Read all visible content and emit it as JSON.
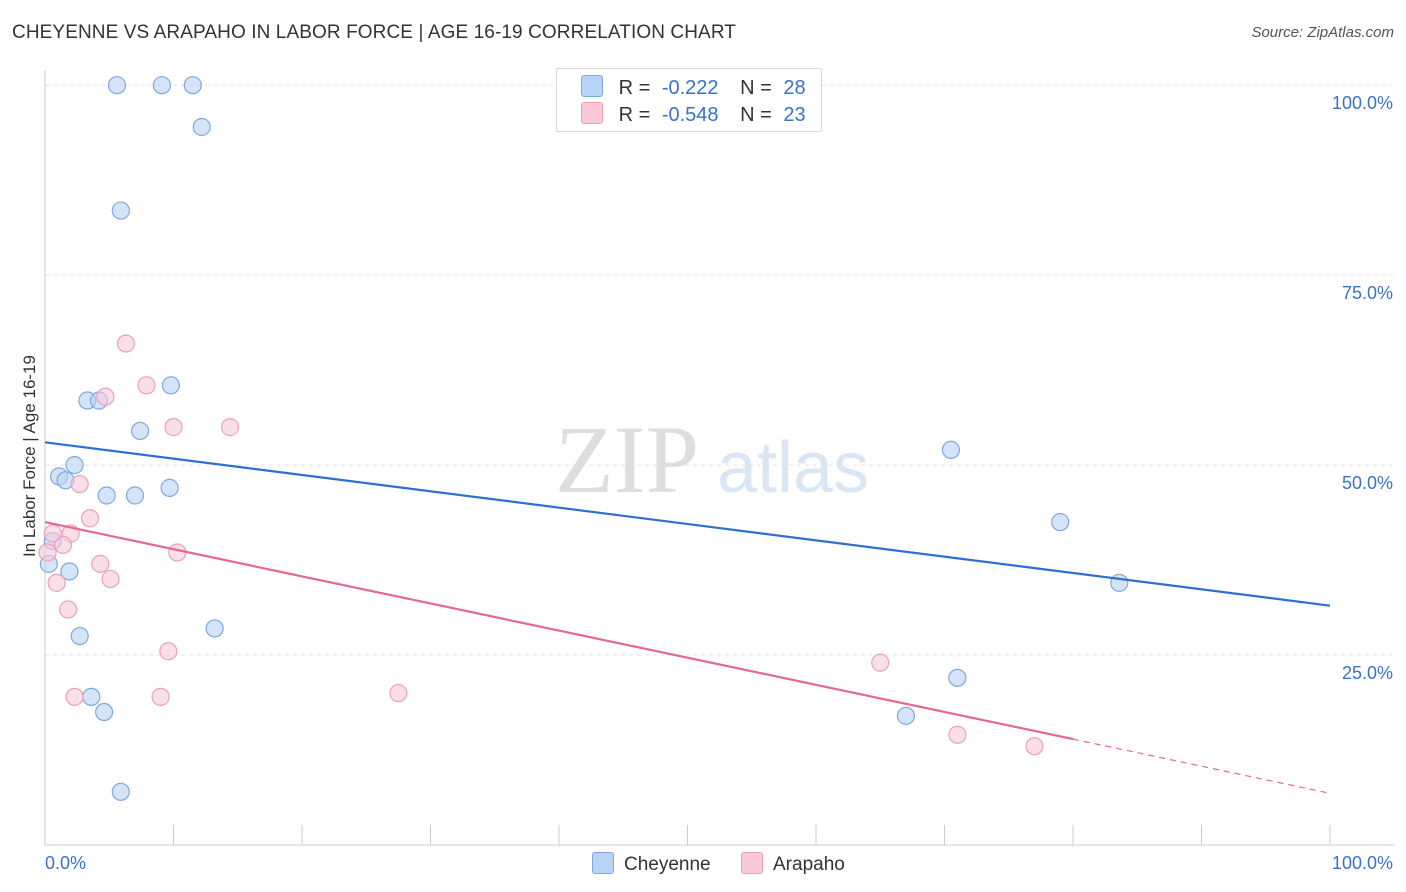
{
  "title": "CHEYENNE VS ARAPAHO IN LABOR FORCE | AGE 16-19 CORRELATION CHART",
  "source": "Source: ZipAtlas.com",
  "watermark": {
    "part1": "ZIP",
    "part2": "atlas"
  },
  "legend": {
    "rows": [
      {
        "r_label": "R =",
        "r_value": "-0.222",
        "n_label": "N =",
        "n_value": "28"
      },
      {
        "r_label": "R =",
        "r_value": "-0.548",
        "n_label": "N =",
        "n_value": "23"
      }
    ]
  },
  "bottom_legend": [
    "Cheyenne",
    "Arapaho"
  ],
  "colors": {
    "cheyenne_fill": "#b8d3f5",
    "cheyenne_stroke": "#7fa8e0",
    "cheyenne_line": "#2f6fd0",
    "arapaho_fill": "#f9c9d8",
    "arapaho_stroke": "#eda0b8",
    "arapaho_line": "#e36896",
    "axis_text": "#3a72c8",
    "grid": "#e3e3e3"
  },
  "chart_data": {
    "type": "scatter",
    "title": "CHEYENNE VS ARAPAHO IN LABOR FORCE | AGE 16-19 CORRELATION CHART",
    "xlabel": "",
    "ylabel": "In Labor Force | Age 16-19",
    "xlim": [
      0,
      100
    ],
    "ylim": [
      0,
      102
    ],
    "x_tick_labels": [
      "0.0%",
      "100.0%"
    ],
    "y_ticks": [
      25,
      50,
      75,
      100
    ],
    "y_tick_labels": [
      "25.0%",
      "50.0%",
      "75.0%",
      "100.0%"
    ],
    "series": [
      {
        "name": "Cheyenne",
        "points": [
          [
            5.6,
            100
          ],
          [
            9.1,
            100
          ],
          [
            11.5,
            100
          ],
          [
            12.2,
            94.5
          ],
          [
            5.9,
            83.5
          ],
          [
            9.8,
            60.5
          ],
          [
            3.3,
            58.5
          ],
          [
            4.2,
            58.5
          ],
          [
            7.4,
            54.5
          ],
          [
            2.3,
            50
          ],
          [
            1.1,
            48.5
          ],
          [
            1.6,
            48
          ],
          [
            4.8,
            46
          ],
          [
            7.0,
            46
          ],
          [
            9.7,
            47
          ],
          [
            0.6,
            40
          ],
          [
            1.9,
            36
          ],
          [
            2.7,
            27.5
          ],
          [
            13.2,
            28.5
          ],
          [
            3.6,
            19.5
          ],
          [
            4.6,
            17.5
          ],
          [
            5.9,
            7
          ],
          [
            70.5,
            52
          ],
          [
            79.0,
            42.5
          ],
          [
            83.6,
            34.5
          ],
          [
            71.0,
            22
          ],
          [
            67.0,
            17
          ],
          [
            0.3,
            37
          ]
        ]
      },
      {
        "name": "Arapaho",
        "points": [
          [
            6.3,
            66
          ],
          [
            7.9,
            60.5
          ],
          [
            4.7,
            59
          ],
          [
            10.0,
            55
          ],
          [
            14.4,
            55
          ],
          [
            2.7,
            47.5
          ],
          [
            3.5,
            43
          ],
          [
            2.0,
            41
          ],
          [
            1.4,
            39.5
          ],
          [
            0.6,
            41
          ],
          [
            10.3,
            38.5
          ],
          [
            4.3,
            37
          ],
          [
            5.1,
            35
          ],
          [
            0.9,
            34.5
          ],
          [
            1.8,
            31
          ],
          [
            9.6,
            25.5
          ],
          [
            2.3,
            19.5
          ],
          [
            9.0,
            19.5
          ],
          [
            27.5,
            20
          ],
          [
            65.0,
            24
          ],
          [
            71.0,
            14.5
          ],
          [
            77.0,
            13
          ],
          [
            0.2,
            38.5
          ]
        ]
      }
    ],
    "trendlines": [
      {
        "name": "Cheyenne",
        "x": [
          0,
          100
        ],
        "y": [
          53.0,
          31.5
        ],
        "solid_until_x": 100
      },
      {
        "name": "Arapaho",
        "x": [
          0,
          100
        ],
        "y": [
          42.5,
          6.8
        ],
        "solid_until_x": 80
      }
    ]
  }
}
